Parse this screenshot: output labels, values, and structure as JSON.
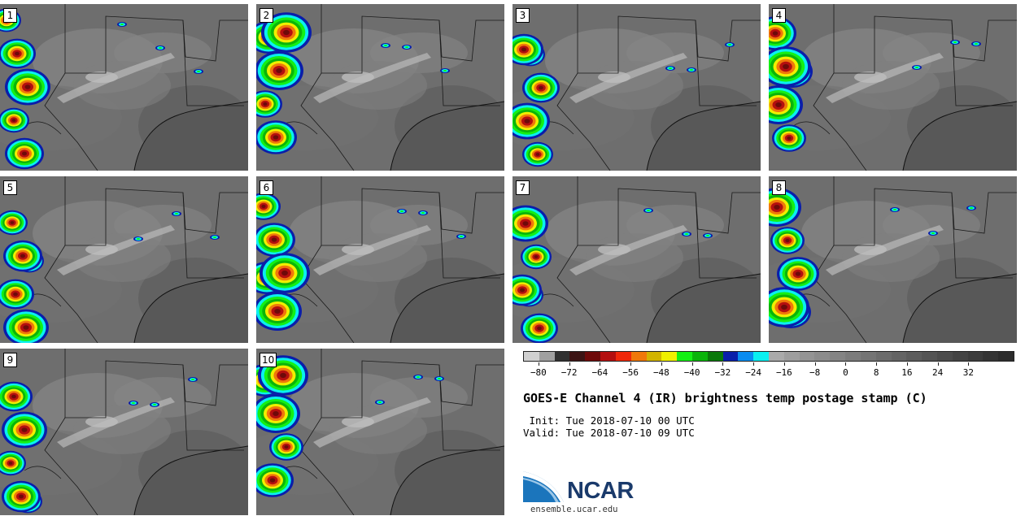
{
  "panels": [
    {
      "label": "1"
    },
    {
      "label": "2"
    },
    {
      "label": "3"
    },
    {
      "label": "4"
    },
    {
      "label": "5"
    },
    {
      "label": "6"
    },
    {
      "label": "7"
    },
    {
      "label": "8"
    },
    {
      "label": "9"
    },
    {
      "label": "10"
    }
  ],
  "colorbar": {
    "colors": [
      "#d0d0d0",
      "#a0a0a0",
      "#303030",
      "#3c1414",
      "#6e0a0a",
      "#b40f0f",
      "#f0280a",
      "#f0780a",
      "#d2b400",
      "#f0f000",
      "#14f014",
      "#0ab40a",
      "#0a780a",
      "#0a1eaa",
      "#0a8cf0",
      "#0af0f0",
      "#aaaaaa",
      "#9e9e9e",
      "#949494",
      "#8c8c8c",
      "#848484",
      "#7c7c7c",
      "#747474",
      "#6c6c6c",
      "#646464",
      "#5c5c5c",
      "#545454",
      "#4c4c4c",
      "#444444",
      "#3c3c3c",
      "#343434",
      "#2c2c2c"
    ],
    "tick_labels": [
      "−80",
      "−72",
      "−64",
      "−56",
      "−48",
      "−40",
      "−32",
      "−24",
      "−16",
      "−8",
      "0",
      "8",
      "16",
      "24",
      "32"
    ]
  },
  "title": "GOES-E Channel 4 (IR) brightness temp postage stamp (C)",
  "init_line": " Init: Tue 2018-07-10 00 UTC",
  "valid_line": "Valid: Tue 2018-07-10 09 UTC",
  "logo": {
    "name": "NCAR",
    "url": "ensemble.ucar.edu"
  }
}
